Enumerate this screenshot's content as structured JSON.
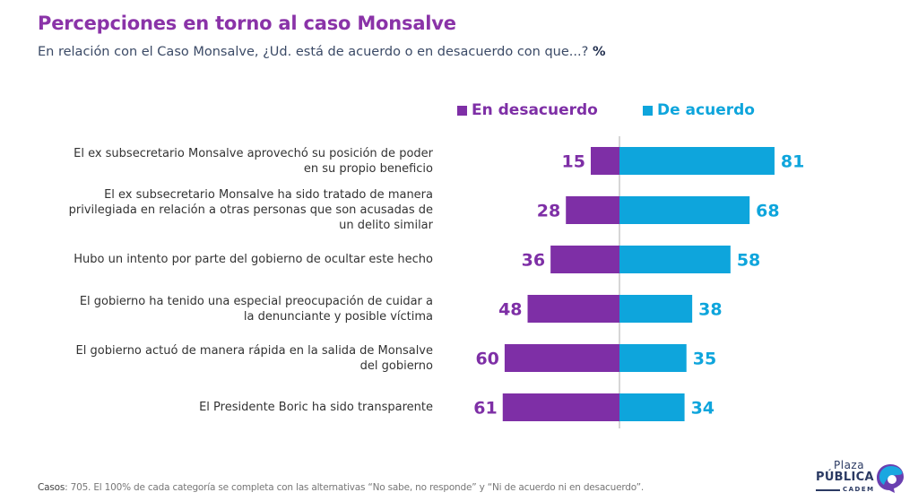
{
  "header": {
    "title": "Percepciones en torno al caso Monsalve",
    "subtitle": "En relación con el Caso Monsalve, ¿Ud. está de acuerdo o en desacuerdo con que...?",
    "subtitle_unit": "%"
  },
  "legend": {
    "disagree": "En desacuerdo",
    "agree": "De acuerdo"
  },
  "colors": {
    "title": "#8a33a8",
    "disagree": "#7e2fa6",
    "agree": "#0ea5dc",
    "axis": "#bbbbbb"
  },
  "chart_data": {
    "type": "bar",
    "orientation": "horizontal-diverging",
    "title": "Percepciones en torno al caso Monsalve",
    "subtitle": "En relación con el Caso Monsalve, ¿Ud. está de acuerdo o en desacuerdo con que...? %",
    "xlabel": "",
    "ylabel": "",
    "unit": "%",
    "categories": [
      "El ex subsecretario Monsalve aprovechó su posición de poder en su propio beneficio",
      "El ex subsecretario Monsalve ha sido tratado de manera privilegiada en relación a otras personas que son acusadas de un delito similar",
      "Hubo un intento por parte del gobierno de ocultar este hecho",
      "El gobierno ha tenido una especial preocupación de cuidar a la denunciante y posible víctima",
      "El gobierno actuó de manera rápida en la salida de Monsalve del gobierno",
      "El Presidente Boric ha sido transparente"
    ],
    "series": [
      {
        "name": "En desacuerdo",
        "direction": "left",
        "values": [
          15,
          28,
          36,
          48,
          60,
          61
        ]
      },
      {
        "name": "De acuerdo",
        "direction": "right",
        "values": [
          81,
          68,
          58,
          38,
          35,
          34
        ]
      }
    ],
    "xlim": [
      -100,
      100
    ],
    "grid": false,
    "legend_position": "top"
  },
  "rows": [
    {
      "label_lines": [
        "El ex subsecretario Monsalve aprovechó su posición de poder",
        "en su propio beneficio"
      ]
    },
    {
      "label_lines": [
        "El ex subsecretario Monsalve ha sido tratado de manera",
        "privilegiada en relación a otras personas que son acusadas de",
        "un delito similar"
      ]
    },
    {
      "label_lines": [
        "Hubo un intento por parte del gobierno de ocultar este hecho"
      ]
    },
    {
      "label_lines": [
        "El gobierno ha tenido una especial preocupación de cuidar a",
        "la denunciante y posible víctima"
      ]
    },
    {
      "label_lines": [
        "El gobierno actuó de manera rápida en la salida de Monsalve",
        "del gobierno"
      ]
    },
    {
      "label_lines": [
        "El Presidente Boric ha sido transparente"
      ]
    }
  ],
  "footer": {
    "label": "Casos",
    "text": ": 705. El 100% de cada categoría se completa con las alternativas “No sabe, no responde” y “Ni de acuerdo ni en desacuerdo”."
  },
  "logo": {
    "line1": "Plaza",
    "line2": "PÚBLICA",
    "line3": "CADEM"
  }
}
